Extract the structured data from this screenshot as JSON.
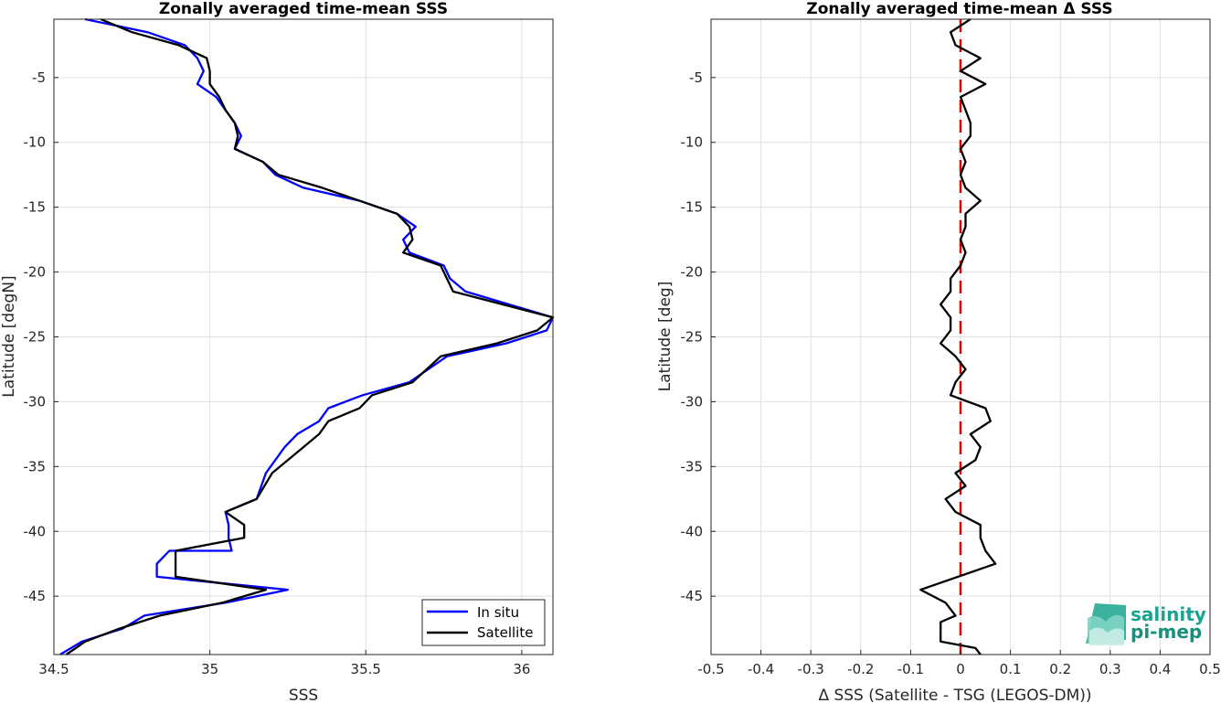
{
  "chart_data": [
    {
      "type": "line",
      "title": "Zonally averaged time-mean SSS",
      "xlabel": "SSS",
      "ylabel": "Latitude [degN]",
      "xlim": [
        34.5,
        36.1
      ],
      "ylim": [
        -49.5,
        -0.5
      ],
      "xticks": [
        34.5,
        35,
        35.5,
        36
      ],
      "xtick_labels": [
        "34.5",
        "35",
        "35.5",
        "36"
      ],
      "yticks": [
        -5,
        -10,
        -15,
        -20,
        -25,
        -30,
        -35,
        -40,
        -45
      ],
      "ytick_labels": [
        "-5",
        "-10",
        "-15",
        "-20",
        "-25",
        "-30",
        "-35",
        "-40",
        "-45"
      ],
      "grid": true,
      "legend_position": "bottom-right",
      "series": [
        {
          "name": "In situ",
          "color": "#0000ff",
          "x": [
            34.6,
            34.8,
            34.92,
            34.96,
            34.98,
            34.96,
            35.02,
            35.05,
            35.08,
            35.1,
            35.08,
            35.17,
            35.21,
            35.3,
            35.48,
            35.6,
            35.66,
            35.62,
            35.64,
            35.75,
            35.77,
            35.82,
            36.1,
            36.08,
            35.95,
            35.76,
            35.64,
            35.49,
            35.38,
            35.35,
            35.28,
            35.24,
            35.18,
            35.15,
            35.05,
            35.06,
            35.06,
            35.07,
            34.87,
            34.83,
            34.83,
            35.25,
            35.05,
            34.79,
            34.72,
            34.59,
            34.52
          ],
          "y": [
            -0.5,
            -1.5,
            -2.5,
            -3.5,
            -4.5,
            -5.5,
            -6.5,
            -7.5,
            -8.5,
            -9.5,
            -10.5,
            -11.5,
            -12.5,
            -13.5,
            -14.5,
            -15.5,
            -16.5,
            -17.5,
            -18.5,
            -19.5,
            -20.5,
            -21.5,
            -23.5,
            -24.5,
            -25.5,
            -26.5,
            -28.5,
            -29.5,
            -30.5,
            -31.5,
            -32.5,
            -33.5,
            -35.5,
            -37.5,
            -38.5,
            -39.5,
            -40.5,
            -41.5,
            -41.5,
            -42.5,
            -43.5,
            -44.5,
            -45.5,
            -46.5,
            -47.5,
            -48.5,
            -49.5
          ]
        },
        {
          "name": "Satellite",
          "color": "#000000",
          "x": [
            34.65,
            34.75,
            34.9,
            34.99,
            35.0,
            35.0,
            35.03,
            35.05,
            35.08,
            35.09,
            35.08,
            35.17,
            35.22,
            35.36,
            35.48,
            35.6,
            35.64,
            35.65,
            35.62,
            35.74,
            35.76,
            35.78,
            36.1,
            36.05,
            35.92,
            35.74,
            35.65,
            35.52,
            35.48,
            35.38,
            35.35,
            35.3,
            35.2,
            35.15,
            35.05,
            35.11,
            35.11,
            34.89,
            34.89,
            35.18,
            35.04,
            34.84,
            34.71,
            34.6,
            34.57,
            34.54
          ],
          "y": [
            -0.5,
            -1.5,
            -2.5,
            -3.5,
            -4.5,
            -5.5,
            -6.5,
            -7.5,
            -8.5,
            -9.5,
            -10.5,
            -11.5,
            -12.5,
            -13.5,
            -14.5,
            -15.5,
            -16.5,
            -17.5,
            -18.5,
            -19.5,
            -20.5,
            -21.5,
            -23.5,
            -24.5,
            -25.5,
            -26.5,
            -28.5,
            -29.5,
            -30.5,
            -31.5,
            -32.5,
            -33.5,
            -35.5,
            -37.5,
            -38.5,
            -39.5,
            -40.5,
            -41.5,
            -43.5,
            -44.5,
            -45.5,
            -46.5,
            -47.5,
            -48.5,
            -49.0,
            -49.5
          ]
        }
      ]
    },
    {
      "type": "line",
      "title": "Zonally averaged time-mean Δ SSS",
      "xlabel": "Δ SSS (Satellite - TSG (LEGOS-DM))",
      "ylabel": "Latitude [deg]",
      "xlim": [
        -0.5,
        0.5
      ],
      "ylim": [
        -49.5,
        -0.5
      ],
      "xticks": [
        -0.5,
        -0.4,
        -0.3,
        -0.2,
        -0.1,
        0,
        0.1,
        0.2,
        0.3,
        0.4,
        0.5
      ],
      "xtick_labels": [
        "-0.5",
        "-0.4",
        "-0.3",
        "-0.2",
        "-0.1",
        "0",
        "0.1",
        "0.2",
        "0.3",
        "0.4",
        "0.5"
      ],
      "yticks": [
        -5,
        -10,
        -15,
        -20,
        -25,
        -30,
        -35,
        -40,
        -45
      ],
      "ytick_labels": [
        "-5",
        "-10",
        "-15",
        "-20",
        "-25",
        "-30",
        "-35",
        "-40",
        "-45"
      ],
      "grid": true,
      "zero_line": {
        "x": 0,
        "color": "#dd0000",
        "style": "dashed"
      },
      "series": [
        {
          "color": "#000000",
          "x": [
            0.02,
            -0.02,
            -0.01,
            0.04,
            0.0,
            0.05,
            0.0,
            0.01,
            0.02,
            0.02,
            0.0,
            0.01,
            0.0,
            0.01,
            0.04,
            0.01,
            0.01,
            0.0,
            0.01,
            0.0,
            -0.02,
            -0.02,
            -0.04,
            -0.02,
            -0.02,
            -0.04,
            -0.01,
            0.01,
            -0.01,
            -0.02,
            0.05,
            0.06,
            0.02,
            0.04,
            0.03,
            -0.01,
            0.01,
            -0.03,
            -0.01,
            0.04,
            0.04,
            0.05,
            0.07,
            -0.08,
            -0.03,
            -0.01,
            -0.04,
            -0.04,
            0.03,
            0.04
          ],
          "y": [
            -0.5,
            -1.5,
            -2.5,
            -3.5,
            -4.5,
            -5.5,
            -6.5,
            -7.5,
            -8.5,
            -9.5,
            -10.5,
            -11.5,
            -12.5,
            -13.5,
            -14.5,
            -15.5,
            -16.5,
            -17.5,
            -18.5,
            -19.5,
            -20.5,
            -21.5,
            -22.5,
            -23.5,
            -24.5,
            -25.5,
            -26.5,
            -27.5,
            -28.5,
            -29.5,
            -30.5,
            -31.5,
            -32.5,
            -33.5,
            -34.5,
            -35.5,
            -36.5,
            -37.5,
            -38.5,
            -39.5,
            -40.5,
            -41.5,
            -42.5,
            -44.5,
            -45.5,
            -46.5,
            -47.0,
            -48.5,
            -49.0,
            -49.5
          ]
        }
      ]
    }
  ],
  "logo": {
    "line1": "salinity",
    "line2": "pi-mep",
    "color1": "#1aa38f",
    "color2": "#168f7d"
  }
}
